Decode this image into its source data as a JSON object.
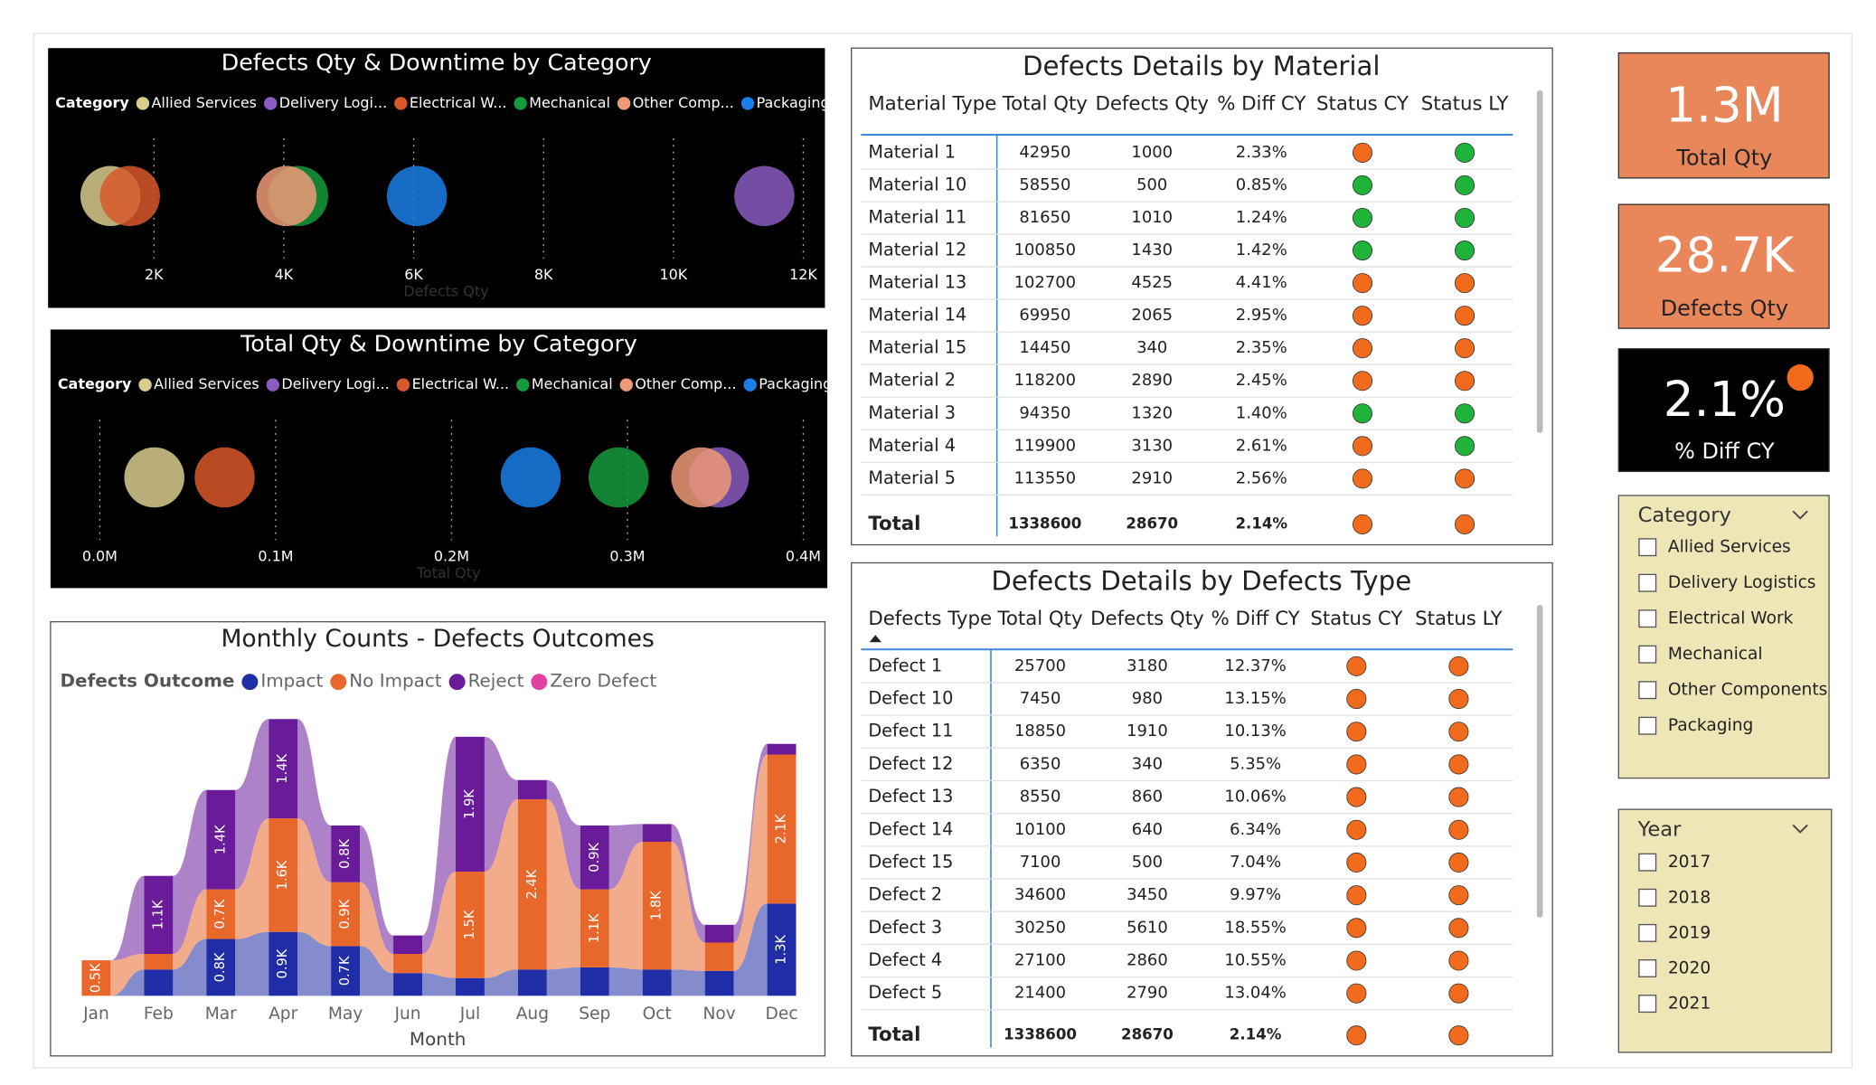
{
  "chart_data": [
    {
      "type": "bubble",
      "title": "Defects Qty & Downtime by Category",
      "legend_title": "Category",
      "xlabel": "Defects Qty",
      "xlim": [
        740,
        12000
      ],
      "xticks": [
        {
          "value": 2000,
          "label": "2K"
        },
        {
          "value": 4000,
          "label": "4K"
        },
        {
          "value": 6000,
          "label": "6K"
        },
        {
          "value": 8000,
          "label": "8K"
        },
        {
          "value": 10000,
          "label": "10K"
        },
        {
          "value": 12000,
          "label": "12K"
        }
      ],
      "grid": true,
      "series": [
        {
          "name": "Allied Services",
          "color": "#d9cd8c",
          "values": [
            1330
          ]
        },
        {
          "name": "Delivery Logi...",
          "color": "#8a5cc0",
          "values": [
            11400
          ]
        },
        {
          "name": "Electrical W...",
          "color": "#d8582a",
          "values": [
            1630
          ]
        },
        {
          "name": "Mechanical",
          "color": "#159a3c",
          "values": [
            4220
          ]
        },
        {
          "name": "Other Comp...",
          "color": "#ee9a78",
          "values": [
            4040
          ]
        },
        {
          "name": "Packaging",
          "color": "#1a7fe8",
          "values": [
            6050
          ]
        }
      ]
    },
    {
      "type": "bubble",
      "title": "Total Qty & Downtime by Category",
      "legend_title": "Category",
      "xlabel": "Total Qty",
      "xlim": [
        0,
        400000
      ],
      "xticks": [
        {
          "value": 0,
          "label": "0.0M"
        },
        {
          "value": 100000,
          "label": "0.1M"
        },
        {
          "value": 200000,
          "label": "0.2M"
        },
        {
          "value": 300000,
          "label": "0.3M"
        },
        {
          "value": 400000,
          "label": "0.4M"
        }
      ],
      "grid": true,
      "series": [
        {
          "name": "Allied Services",
          "color": "#d9cd8c",
          "values": [
            31000
          ]
        },
        {
          "name": "Delivery Logi...",
          "color": "#8a5cc0",
          "values": [
            352000
          ]
        },
        {
          "name": "Electrical W...",
          "color": "#d8582a",
          "values": [
            71000
          ]
        },
        {
          "name": "Mechanical",
          "color": "#159a3c",
          "values": [
            295000
          ]
        },
        {
          "name": "Other Comp...",
          "color": "#ee9a78",
          "values": [
            342000
          ]
        },
        {
          "name": "Packaging",
          "color": "#1a7fe8",
          "values": [
            245000
          ]
        }
      ]
    },
    {
      "type": "ribbon",
      "title": "Monthly Counts - Defects Outcomes",
      "legend_title": "Defects Outcome",
      "xlabel": "Month",
      "categories": [
        "Jan",
        "Feb",
        "Mar",
        "Apr",
        "May",
        "Jun",
        "Jul",
        "Aug",
        "Sep",
        "Oct",
        "Nov",
        "Dec"
      ],
      "ylim": [
        0,
        4000
      ],
      "series": [
        {
          "name": "Impact",
          "color": "#1f2ea6",
          "values": [
            0,
            370,
            800,
            900,
            700,
            320,
            250,
            370,
            400,
            370,
            350,
            1300
          ],
          "value_labels": [
            null,
            null,
            "0.8K",
            "0.9K",
            "0.7K",
            null,
            null,
            null,
            null,
            null,
            null,
            "1.3K"
          ]
        },
        {
          "name": "No Impact",
          "color": "#e8682c",
          "values": [
            500,
            220,
            700,
            1600,
            900,
            270,
            1500,
            2400,
            1100,
            1800,
            400,
            2100
          ],
          "value_labels": [
            "0.5K",
            null,
            "0.7K",
            "1.6K",
            "0.9K",
            null,
            "1.5K",
            "2.4K",
            "1.1K",
            "1.8K",
            null,
            "2.1K"
          ]
        },
        {
          "name": "Reject",
          "color": "#6a1b9a",
          "values": [
            0,
            1100,
            1400,
            1400,
            800,
            260,
            1900,
            270,
            900,
            250,
            250,
            150
          ],
          "value_labels": [
            null,
            "1.1K",
            "1.4K",
            "1.4K",
            "0.8K",
            null,
            "1.9K",
            null,
            "0.9K",
            null,
            null,
            null
          ]
        },
        {
          "name": "Zero Defect",
          "color": "#e0409e",
          "values": [
            0,
            0,
            0,
            0,
            0,
            0,
            0,
            0,
            0,
            0,
            0,
            0
          ]
        }
      ]
    }
  ],
  "tables": [
    {
      "title": "Defects Details by Material",
      "columns": [
        "Material Type",
        "Total Qty",
        "Defects Qty",
        "% Diff CY",
        "Status CY",
        "Status LY"
      ],
      "rows": [
        {
          "cells": [
            "Material 1",
            42950,
            1000,
            "2.33%"
          ],
          "status": [
            "#f26a1b",
            "#1fb33a"
          ]
        },
        {
          "cells": [
            "Material 10",
            58550,
            500,
            "0.85%"
          ],
          "status": [
            "#1fb33a",
            "#1fb33a"
          ]
        },
        {
          "cells": [
            "Material 11",
            81650,
            1010,
            "1.24%"
          ],
          "status": [
            "#1fb33a",
            "#1fb33a"
          ]
        },
        {
          "cells": [
            "Material 12",
            100850,
            1430,
            "1.42%"
          ],
          "status": [
            "#1fb33a",
            "#1fb33a"
          ]
        },
        {
          "cells": [
            "Material 13",
            102700,
            4525,
            "4.41%"
          ],
          "status": [
            "#f26a1b",
            "#f26a1b"
          ]
        },
        {
          "cells": [
            "Material 14",
            69950,
            2065,
            "2.95%"
          ],
          "status": [
            "#f26a1b",
            "#f26a1b"
          ]
        },
        {
          "cells": [
            "Material 15",
            14450,
            340,
            "2.35%"
          ],
          "status": [
            "#f26a1b",
            "#f26a1b"
          ]
        },
        {
          "cells": [
            "Material 2",
            118200,
            2890,
            "2.45%"
          ],
          "status": [
            "#f26a1b",
            "#f26a1b"
          ]
        },
        {
          "cells": [
            "Material 3",
            94350,
            1320,
            "1.40%"
          ],
          "status": [
            "#1fb33a",
            "#1fb33a"
          ]
        },
        {
          "cells": [
            "Material 4",
            119900,
            3130,
            "2.61%"
          ],
          "status": [
            "#f26a1b",
            "#1fb33a"
          ]
        },
        {
          "cells": [
            "Material 5",
            113550,
            2910,
            "2.56%"
          ],
          "status": [
            "#f26a1b",
            "#f26a1b"
          ]
        }
      ],
      "total": {
        "cells": [
          "Total",
          1338600,
          28670,
          "2.14%"
        ],
        "status": [
          "#f26a1b",
          "#f26a1b"
        ]
      }
    },
    {
      "title": "Defects Details by Defects Type",
      "columns": [
        "Defects Type",
        "Total Qty",
        "Defects Qty",
        "% Diff CY",
        "Status CY",
        "Status LY"
      ],
      "rows": [
        {
          "cells": [
            "Defect 1",
            25700,
            3180,
            "12.37%"
          ],
          "status": [
            "#f26a1b",
            "#f26a1b"
          ]
        },
        {
          "cells": [
            "Defect 10",
            7450,
            980,
            "13.15%"
          ],
          "status": [
            "#f26a1b",
            "#f26a1b"
          ]
        },
        {
          "cells": [
            "Defect 11",
            18850,
            1910,
            "10.13%"
          ],
          "status": [
            "#f26a1b",
            "#f26a1b"
          ]
        },
        {
          "cells": [
            "Defect 12",
            6350,
            340,
            "5.35%"
          ],
          "status": [
            "#f26a1b",
            "#f26a1b"
          ]
        },
        {
          "cells": [
            "Defect 13",
            8550,
            860,
            "10.06%"
          ],
          "status": [
            "#f26a1b",
            "#f26a1b"
          ]
        },
        {
          "cells": [
            "Defect 14",
            10100,
            640,
            "6.34%"
          ],
          "status": [
            "#f26a1b",
            "#f26a1b"
          ]
        },
        {
          "cells": [
            "Defect 15",
            7100,
            500,
            "7.04%"
          ],
          "status": [
            "#f26a1b",
            "#f26a1b"
          ]
        },
        {
          "cells": [
            "Defect 2",
            34600,
            3450,
            "9.97%"
          ],
          "status": [
            "#f26a1b",
            "#f26a1b"
          ]
        },
        {
          "cells": [
            "Defect 3",
            30250,
            5610,
            "18.55%"
          ],
          "status": [
            "#f26a1b",
            "#f26a1b"
          ]
        },
        {
          "cells": [
            "Defect 4",
            27100,
            2860,
            "10.55%"
          ],
          "status": [
            "#f26a1b",
            "#f26a1b"
          ]
        },
        {
          "cells": [
            "Defect 5",
            21400,
            2790,
            "13.04%"
          ],
          "status": [
            "#f26a1b",
            "#f26a1b"
          ]
        }
      ],
      "total": {
        "cells": [
          "Total",
          1338600,
          28670,
          "2.14%"
        ],
        "status": [
          "#f26a1b",
          "#f26a1b"
        ]
      }
    }
  ],
  "cards": [
    {
      "value": "1.3M",
      "label": "Total Qty",
      "color": "#e9875b",
      "font_color": "#ffffff",
      "label_color": "#222222"
    },
    {
      "value": "28.7K",
      "label": "Defects Qty",
      "color": "#e9875b",
      "font_color": "#ffffff",
      "label_color": "#222222"
    },
    {
      "value": "2.1%",
      "label": "% Diff CY",
      "color": "#000000",
      "font_color": "#ffffff",
      "label_color": "#ffffff",
      "indicator_color": "#f26a1b"
    }
  ],
  "slicers": [
    {
      "title": "Category",
      "items": [
        "Allied Services",
        "Delivery Logistics",
        "Electrical Work",
        "Mechanical",
        "Other Components",
        "Packaging"
      ]
    },
    {
      "title": "Year",
      "items": [
        2017,
        2018,
        2019,
        2020,
        2021
      ]
    }
  ]
}
